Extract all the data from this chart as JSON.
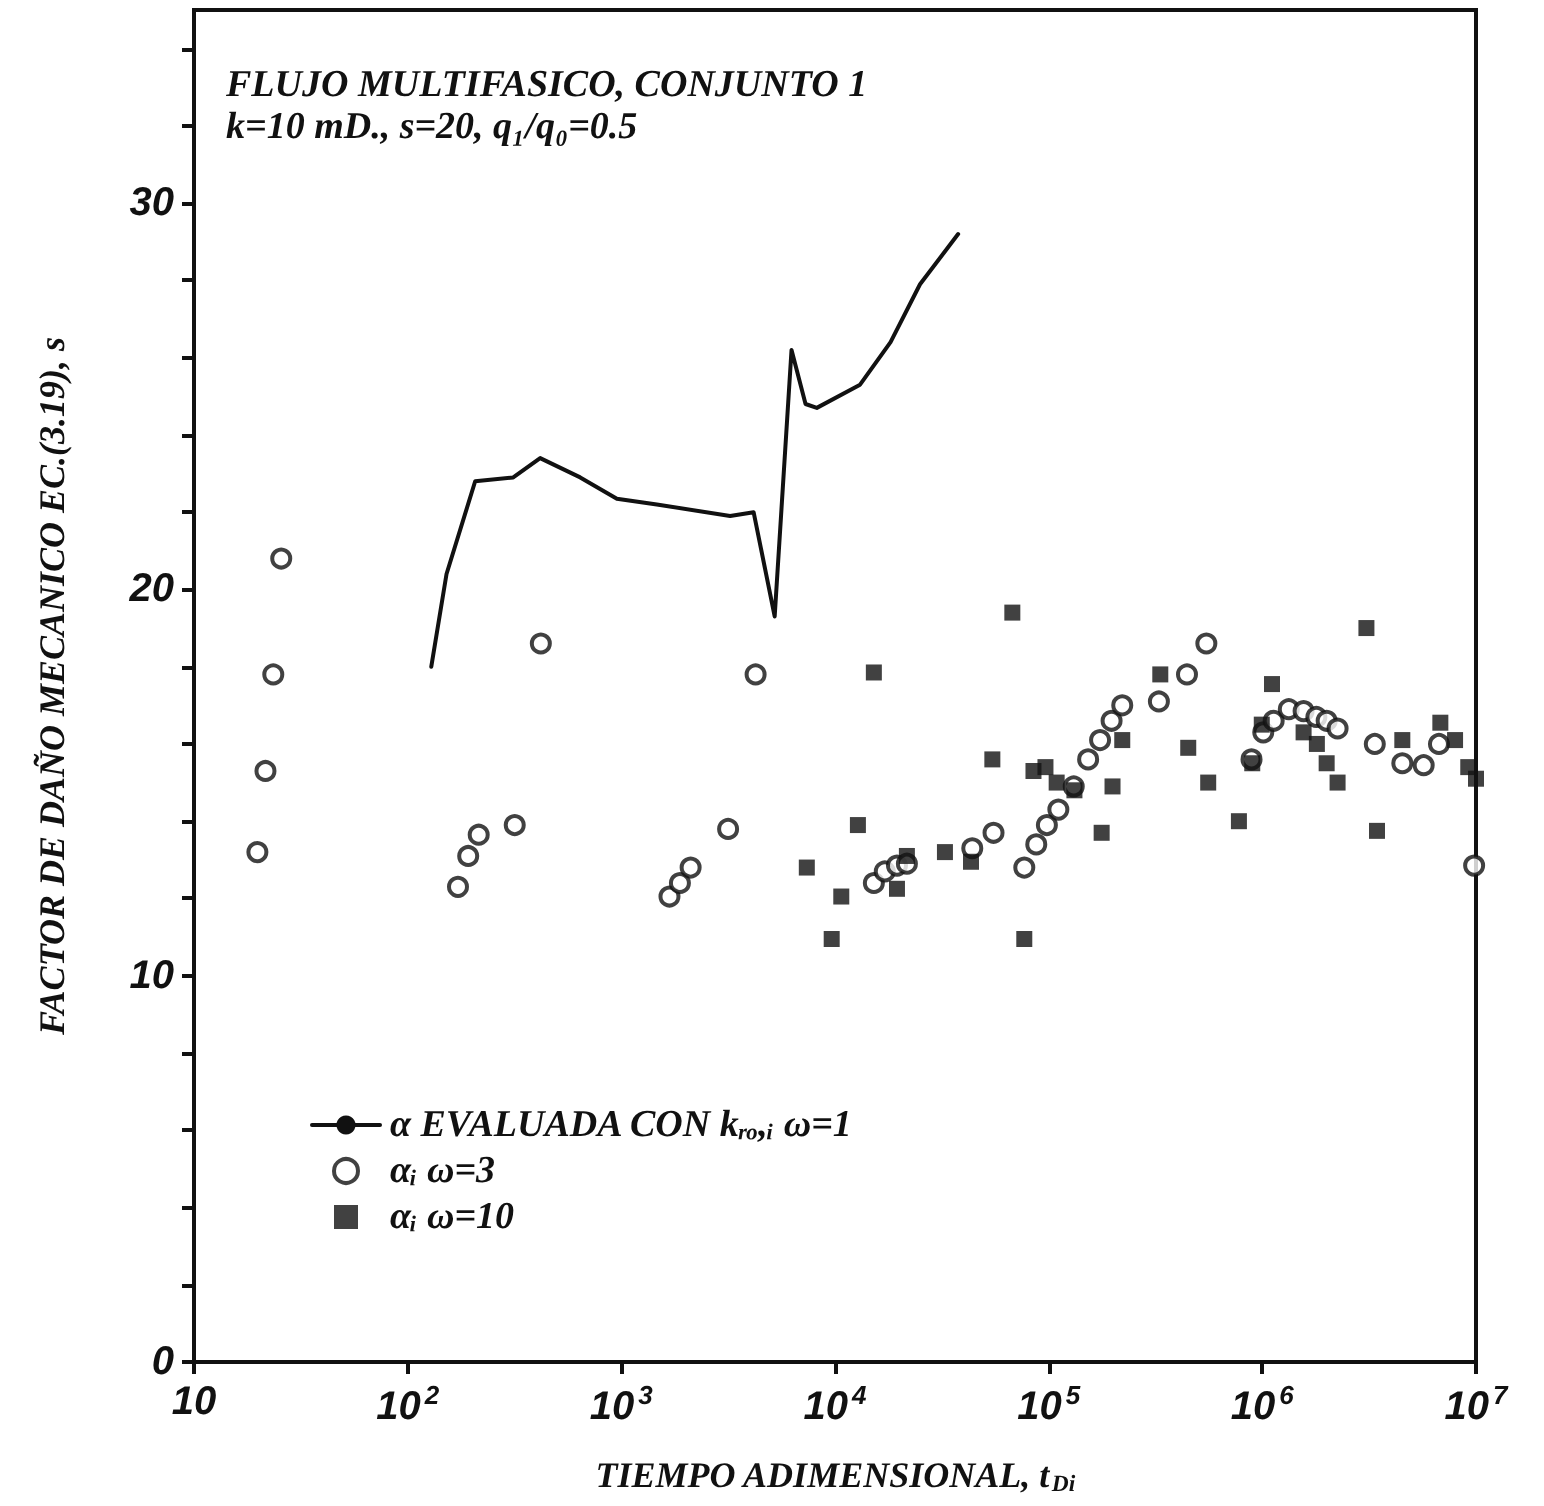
{
  "chart_data": {
    "type": "scatter",
    "title": "FLUJO MULTIFASICO, CONJUNTO 1",
    "subtitle": "k=10 mD., s=20, q₁/q₀=0.5",
    "xlabel": "TIEMPO ADIMENSIONAL, t$_{Di}$",
    "ylabel": "FACTOR DE DAÑO MECANICO EC.(3.19), s",
    "log": "x",
    "grid": false,
    "legend": "bottom left",
    "xlim": [
      10,
      10000000
    ],
    "xticks": [
      10,
      {
        "value": 100,
        "label": "10$^{2}$"
      },
      {
        "value": 1000,
        "label": "10$^{3}$"
      },
      {
        "value": 10000,
        "label": "10$^{4}$"
      },
      {
        "value": 100000,
        "label": "10$^{5}$"
      },
      {
        "value": 1000000,
        "label": "10$^{6}$"
      },
      {
        "value": 10000000,
        "label": "10$^{7}$"
      }
    ],
    "ylim": [
      0,
      35
    ],
    "yticks": [
      0,
      {
        "value": 2,
        "label": null
      },
      {
        "value": 4,
        "label": null
      },
      {
        "value": 6,
        "label": null
      },
      {
        "value": 8,
        "label": null
      },
      10,
      {
        "value": 12,
        "label": null
      },
      {
        "value": 14,
        "label": null
      },
      {
        "value": 16,
        "label": null
      },
      {
        "value": 18,
        "label": null
      },
      20,
      {
        "value": 22,
        "label": null
      },
      {
        "value": 24,
        "label": null
      },
      {
        "value": 26,
        "label": null
      },
      {
        "value": 28,
        "label": null
      },
      30,
      {
        "value": 32,
        "label": null
      },
      {
        "value": 34,
        "label": null
      }
    ],
    "series": [
      {
        "name": "α EVALUADA CON kᵣₒ,ᵢ ω=1",
        "type": "line",
        "marker": "none",
        "line_style": "solid",
        "color": "#111111",
        "x": [
          129,
          152,
          207,
          312,
          417,
          642,
          953,
          1466,
          3230,
          4160,
          5220,
          6260,
          7280,
          8220,
          13100,
          18200,
          25000,
          37700
        ],
        "values": [
          18.0,
          20.4,
          22.8,
          22.9,
          23.4,
          22.9,
          22.35,
          22.2,
          21.9,
          22.0,
          19.3,
          26.2,
          24.8,
          24.7,
          25.3,
          26.4,
          27.9,
          29.2
        ]
      },
      {
        "name": "αᵢ ω=3",
        "marker": "circle",
        "color": "#111111",
        "x": [
          19.8,
          21.6,
          23.5,
          25.6,
          172,
          192,
          215,
          317,
          420,
          1680,
          1880,
          2110,
          3160,
          4250,
          15200,
          17100,
          19500,
          21700,
          43900,
          55200,
          76900,
          87500,
          98100,
          111000,
          131000,
          153000,
          174000,
          197000,
          221000,
          328000,
          444000,
          547000,
          890000,
          1010000,
          1130000,
          1330000,
          1560000,
          1790000,
          2000000,
          2250000,
          3360000,
          4520000,
          5690000,
          6710000,
          9800000
        ],
        "values": [
          13.2,
          15.3,
          17.8,
          20.8,
          12.3,
          13.1,
          13.65,
          13.9,
          18.6,
          12.05,
          12.4,
          12.8,
          13.8,
          17.8,
          12.4,
          12.7,
          12.85,
          12.9,
          13.3,
          13.7,
          12.8,
          13.4,
          13.9,
          14.3,
          14.9,
          15.6,
          16.1,
          16.6,
          17.0,
          17.1,
          17.8,
          18.6,
          15.6,
          16.3,
          16.6,
          16.9,
          16.85,
          16.7,
          16.6,
          16.4,
          16.0,
          15.5,
          15.45,
          16.0,
          12.85
        ]
      },
      {
        "name": "αᵢ ω=10",
        "marker": "square",
        "color": "#111111",
        "x": [
          7380,
          9650,
          10700,
          12800,
          15200,
          19500,
          21700,
          32700,
          43300,
          54500,
          67600,
          76900,
          84900,
          96600,
          109000,
          132000,
          177000,
          199000,
          221000,
          333000,
          450000,
          558000,
          777000,
          897000,
          994000,
          1110000,
          1560000,
          1800000,
          2000000,
          2250000,
          3070000,
          3440000,
          4520000,
          6810000,
          7980000,
          9200000,
          10000000
        ],
        "values": [
          12.8,
          10.95,
          12.05,
          13.9,
          17.85,
          12.25,
          13.1,
          13.2,
          12.95,
          15.6,
          19.4,
          10.95,
          15.3,
          15.4,
          15.0,
          14.8,
          13.7,
          14.9,
          16.1,
          17.8,
          15.9,
          15.0,
          14.0,
          15.5,
          16.5,
          17.55,
          16.3,
          16.0,
          15.5,
          15.0,
          19.0,
          13.75,
          16.1,
          16.55,
          16.1,
          15.4,
          15.1
        ]
      }
    ]
  }
}
